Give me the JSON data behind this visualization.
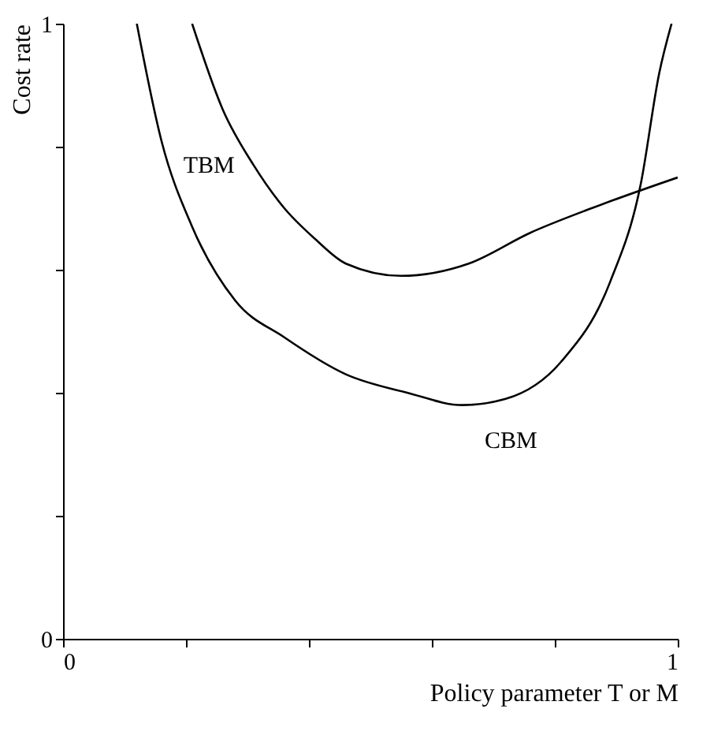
{
  "chart_data": {
    "type": "line",
    "xlabel": "Policy parameter T or M",
    "ylabel": "Cost rate",
    "series": [
      {
        "name": "TBM",
        "color": "#000000",
        "x": [
          0.21,
          0.26,
          0.31,
          0.36,
          0.41,
          0.46,
          0.55,
          0.66,
          0.76,
          0.86,
          1.0
        ],
        "values": [
          1.0,
          0.86,
          0.77,
          0.7,
          0.65,
          0.61,
          0.59,
          0.61,
          0.66,
          0.7,
          0.75
        ]
      },
      {
        "name": "CBM",
        "color": "#000000",
        "x": [
          0.12,
          0.16,
          0.21,
          0.28,
          0.36,
          0.46,
          0.56,
          0.65,
          0.72,
          0.81,
          0.89,
          0.94,
          0.97,
          0.99
        ],
        "values": [
          1.0,
          0.81,
          0.67,
          0.55,
          0.49,
          0.43,
          0.4,
          0.38,
          0.39,
          0.45,
          0.58,
          0.74,
          0.92,
          1.0
        ]
      }
    ],
    "xlim": [
      0,
      1
    ],
    "ylim": [
      0,
      1
    ],
    "xticks": [
      0,
      {
        "value": 0.2,
        "label": null
      },
      {
        "value": 0.4,
        "label": null
      },
      {
        "value": 0.6,
        "label": null
      },
      {
        "value": 0.8,
        "label": null
      },
      1
    ],
    "yticks": [
      0,
      {
        "value": 0.2,
        "label": null
      },
      {
        "value": 0.4,
        "label": null
      },
      {
        "value": 0.6,
        "label": null
      },
      {
        "value": 0.8,
        "label": null
      },
      1
    ],
    "grid": false,
    "legend": false,
    "marker": "none",
    "line_style": "solid"
  }
}
